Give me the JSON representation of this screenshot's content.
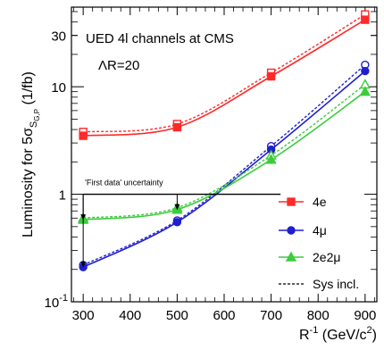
{
  "chart_data": {
    "type": "line",
    "yscale": "log",
    "title": "UED 4l channels at CMS",
    "subtitle": "ΛR=20",
    "ylabel_main": "Luminosity for 5σ",
    "ylabel_sub": "S",
    "ylabel_subsub": "G,P",
    "ylabel_unit": "(1/fb)",
    "xlabel_main": "R",
    "xlabel_exp": "-1",
    "xlabel_unit": "(GeV/c",
    "xlabel_unit_exp": "2",
    "xlabel_close": ")",
    "xlim": [
      275,
      925
    ],
    "ylim": [
      0.1,
      55
    ],
    "x_ticks": [
      300,
      400,
      500,
      600,
      700,
      800,
      900
    ],
    "y_ticks": [
      {
        "value": 0.1,
        "label": "10",
        "exp": "-1"
      },
      {
        "value": 1,
        "label": "1"
      },
      {
        "value": 10,
        "label": "10"
      },
      {
        "value": 30,
        "label": "30"
      }
    ],
    "annotation": {
      "text": "'First data' uncertainty",
      "y": 1
    },
    "legend_position": "right",
    "series": [
      {
        "name": "4e",
        "color": "#ff2a2a",
        "marker": "square",
        "x": [
          300,
          500,
          700,
          900
        ],
        "nominal": [
          3.5,
          4.2,
          12.5,
          42
        ],
        "sys": [
          3.8,
          4.5,
          13.5,
          47
        ]
      },
      {
        "name": "4μ",
        "color": "#1f1fd0",
        "marker": "circle",
        "x": [
          300,
          500,
          700,
          900
        ],
        "nominal": [
          0.21,
          0.55,
          2.6,
          14
        ],
        "sys": [
          0.22,
          0.57,
          2.8,
          16
        ]
      },
      {
        "name": "2e2μ",
        "color": "#3dcc3d",
        "marker": "triangle",
        "x": [
          300,
          500,
          700,
          900
        ],
        "nominal": [
          0.58,
          0.72,
          2.1,
          9.0
        ],
        "sys": [
          0.6,
          0.75,
          2.3,
          10.5
        ]
      }
    ],
    "legend_sys_label": "Sys incl."
  }
}
